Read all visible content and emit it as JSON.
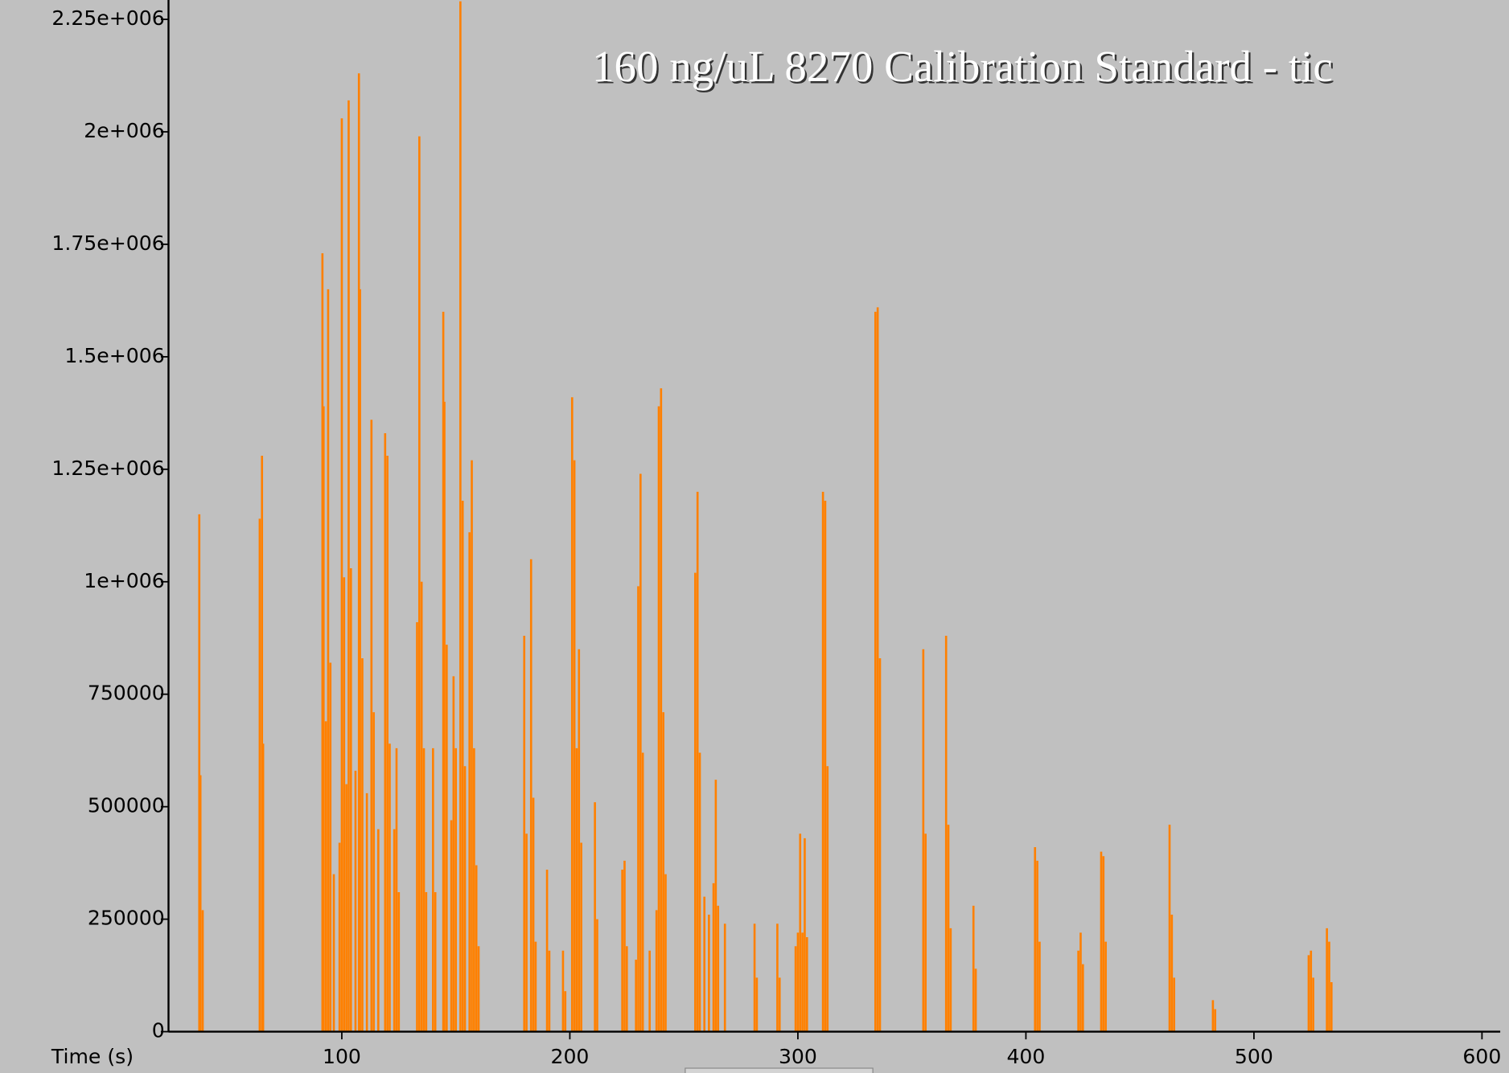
{
  "chart_data": {
    "type": "stem",
    "title": "160 ng/uL 8270 Calibration Standard - tic",
    "x_label": "Time (s)",
    "color": "#ff8000",
    "xlim": [
      24,
      608
    ],
    "ylim": [
      0,
      2293000
    ],
    "xticks": [
      100,
      200,
      300,
      400,
      500,
      600
    ],
    "yticks": [
      0,
      250000,
      500000,
      750000,
      {
        "value": 1000000,
        "label": "1e+006"
      },
      {
        "value": 1250000,
        "label": "1.25e+006"
      },
      {
        "value": 1500000,
        "label": "1.5e+006"
      },
      {
        "value": 1750000,
        "label": "1.75e+006"
      },
      {
        "value": 2000000,
        "label": "2e+006"
      },
      {
        "value": 2250000,
        "label": "2.25e+006"
      }
    ],
    "x": [
      37.5,
      38,
      39,
      64,
      65,
      65.5,
      91.5,
      92,
      93,
      94,
      95,
      96.5,
      99,
      100,
      101,
      102,
      103,
      104,
      106,
      107.5,
      108,
      109,
      111,
      113,
      114,
      116,
      119,
      120,
      121,
      123,
      124,
      125,
      133,
      134,
      135,
      136,
      137,
      140,
      141,
      144.5,
      145,
      146,
      148,
      149,
      150,
      152,
      153,
      154,
      156,
      157,
      158,
      159,
      160,
      180,
      181,
      183,
      184,
      185,
      190,
      191,
      197,
      198,
      201,
      202,
      203,
      204,
      205,
      211,
      212,
      223,
      224,
      225,
      229,
      230,
      231,
      232,
      235,
      238,
      239,
      240,
      241,
      242,
      255,
      256,
      257,
      259,
      261,
      263,
      264,
      265,
      268,
      281,
      282,
      291,
      292,
      299,
      300,
      301,
      302,
      303,
      304,
      311,
      312,
      313,
      334,
      335,
      336,
      355,
      356,
      365,
      366,
      367,
      377,
      378,
      404,
      405,
      406,
      423,
      424,
      425,
      433,
      434,
      435,
      463,
      464,
      465,
      482,
      483,
      524,
      525,
      526,
      532,
      533,
      534
    ],
    "values": [
      1150000,
      570000,
      270000,
      1140000,
      1280000,
      640000,
      1730000,
      1390000,
      690000,
      1650000,
      820000,
      350000,
      420000,
      2030000,
      1010000,
      550000,
      2070000,
      1030000,
      580000,
      2130000,
      1650000,
      830000,
      530000,
      1360000,
      710000,
      450000,
      1330000,
      1280000,
      640000,
      450000,
      630000,
      310000,
      910000,
      1990000,
      1000000,
      630000,
      310000,
      630000,
      310000,
      1600000,
      1400000,
      860000,
      470000,
      790000,
      630000,
      2290000,
      1180000,
      590000,
      1110000,
      1270000,
      630000,
      370000,
      190000,
      880000,
      440000,
      1050000,
      520000,
      200000,
      360000,
      180000,
      180000,
      90000,
      1410000,
      1270000,
      630000,
      850000,
      420000,
      510000,
      250000,
      360000,
      380000,
      190000,
      160000,
      990000,
      1240000,
      620000,
      180000,
      270000,
      1390000,
      1430000,
      710000,
      350000,
      1020000,
      1200000,
      620000,
      300000,
      260000,
      330000,
      560000,
      280000,
      240000,
      240000,
      120000,
      240000,
      120000,
      190000,
      220000,
      440000,
      220000,
      430000,
      210000,
      1200000,
      1180000,
      590000,
      1600000,
      1610000,
      830000,
      850000,
      440000,
      880000,
      460000,
      230000,
      280000,
      140000,
      410000,
      380000,
      200000,
      180000,
      220000,
      150000,
      400000,
      390000,
      200000,
      460000,
      260000,
      120000,
      70000,
      50000,
      170000,
      180000,
      120000,
      230000,
      200000,
      110000
    ]
  }
}
